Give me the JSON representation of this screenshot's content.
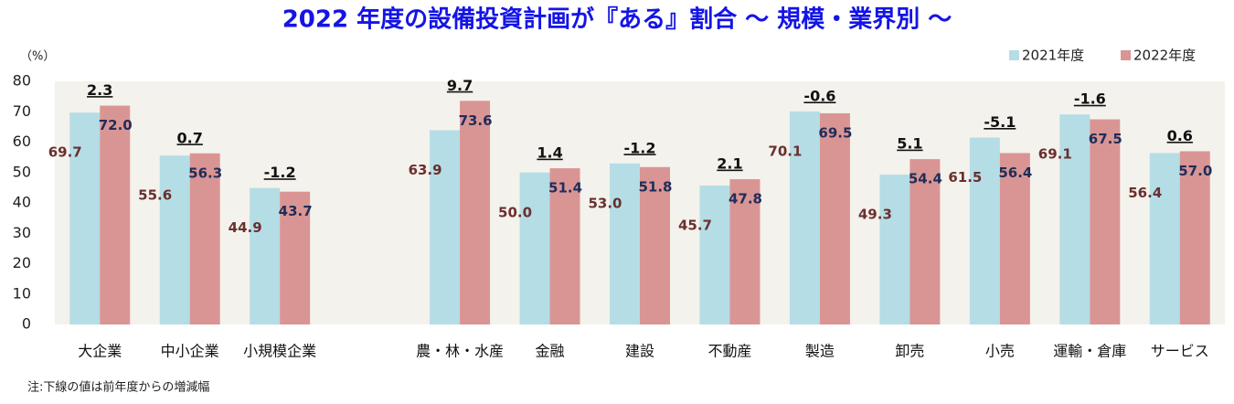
{
  "chart_data": {
    "type": "bar",
    "title": "2022 年度の設備投資計画が『ある』割合 ～ 規模・業界別 ～",
    "y_label": "（%）",
    "note": "注:下線の値は前年度からの増減幅",
    "categories": [
      "大企業",
      "中小企業",
      "小規模企業",
      null,
      "農・林・水産",
      "金融",
      "建設",
      "不動産",
      "製造",
      "卸売",
      "小売",
      "運輸・倉庫",
      "サービス"
    ],
    "series": [
      {
        "name": "2021年度",
        "color": "#b5dde6",
        "label_color": "#6b2f2f",
        "values": [
          69.7,
          55.6,
          44.9,
          null,
          63.9,
          50.0,
          53.0,
          45.7,
          70.1,
          49.3,
          61.5,
          69.1,
          56.4
        ],
        "value_labels": [
          "69.7",
          "55.6",
          "44.9",
          null,
          "63.9",
          "50.0",
          "53.0",
          "45.7",
          "70.1",
          "49.3",
          "61.5",
          "69.1",
          "56.4"
        ]
      },
      {
        "name": "2022年度",
        "color": "#d99594",
        "label_color": "#1f2d5a",
        "values": [
          72.0,
          56.3,
          43.7,
          null,
          73.6,
          51.4,
          51.8,
          47.8,
          69.5,
          54.4,
          56.4,
          67.5,
          57.0
        ],
        "value_labels": [
          "72.0",
          "56.3",
          "43.7",
          null,
          "73.6",
          "51.4",
          "51.8",
          "47.8",
          "69.5",
          "54.4",
          "56.4",
          "67.5",
          "57.0"
        ]
      }
    ],
    "changes": [
      2.3,
      0.7,
      -1.2,
      null,
      9.7,
      1.4,
      -1.2,
      2.1,
      -0.6,
      5.1,
      -5.1,
      -1.6,
      0.6
    ],
    "ylim": [
      0,
      80
    ],
    "yticks": [
      0,
      10,
      20,
      30,
      40,
      50,
      60,
      70,
      80
    ],
    "legend": "top-right"
  }
}
